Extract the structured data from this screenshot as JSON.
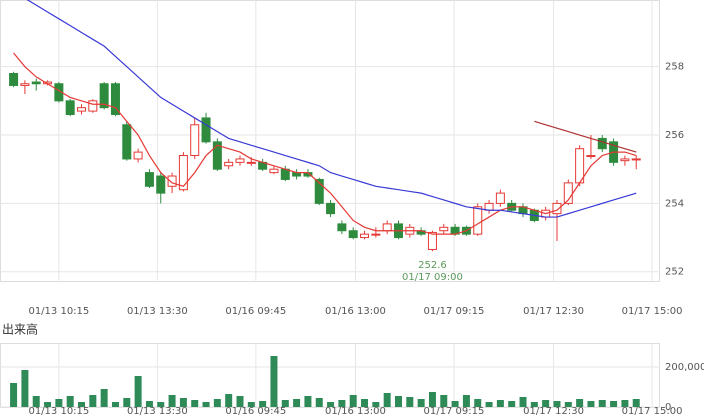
{
  "chart_data": {
    "type": "candlestick",
    "xlim": [
      -1.2,
      57.1
    ],
    "xticks": [
      {
        "value": 4,
        "label": "01/13 10:15"
      },
      {
        "value": 12.7,
        "label": "01/13 13:30"
      },
      {
        "value": 21.4,
        "label": "01/16 09:45"
      },
      {
        "value": 30.2,
        "label": "01/16 13:00"
      },
      {
        "value": 38.9,
        "label": "01/17 09:15"
      },
      {
        "value": 47.7,
        "label": "01/17 12:30"
      },
      {
        "value": 56.4,
        "label": "01/17 15:00"
      }
    ],
    "ylim": [
      251.7,
      259.95
    ],
    "yticks": [
      252,
      254,
      256,
      258
    ],
    "up_color": "#e53935",
    "down_color": "#2e8b3e",
    "open": [
      257.8,
      257.45,
      257.55,
      257.5,
      257.5,
      257.0,
      256.7,
      256.7,
      257.5,
      257.5,
      256.3,
      255.3,
      254.9,
      254.8,
      254.5,
      254.4,
      255.4,
      256.5,
      255.8,
      255.1,
      255.2,
      255.2,
      255.2,
      254.9,
      255.0,
      254.9,
      254.9,
      254.7,
      254.0,
      253.4,
      253.2,
      253.0,
      253.1,
      253.2,
      253.4,
      253.1,
      253.2,
      252.65,
      253.2,
      253.3,
      253.3,
      253.1,
      253.8,
      254.0,
      254.0,
      253.9,
      253.8,
      253.6,
      253.7,
      254.0,
      254.6,
      255.4,
      255.9,
      255.8,
      255.25,
      255.3
    ],
    "high": [
      257.85,
      257.6,
      257.65,
      257.6,
      257.55,
      257.05,
      256.9,
      257.05,
      257.55,
      257.55,
      256.4,
      255.6,
      255.0,
      254.9,
      254.9,
      255.5,
      256.5,
      256.65,
      255.9,
      255.3,
      255.4,
      255.35,
      255.3,
      255.1,
      255.1,
      255.0,
      255.0,
      254.75,
      254.1,
      253.5,
      253.3,
      253.2,
      253.3,
      253.5,
      253.5,
      253.4,
      253.3,
      253.2,
      253.4,
      253.4,
      253.35,
      254.0,
      254.1,
      254.4,
      254.1,
      254.0,
      253.85,
      253.9,
      254.1,
      254.7,
      255.7,
      256.0,
      256.0,
      255.9,
      255.4,
      255.4
    ],
    "low": [
      257.4,
      257.2,
      257.3,
      257.45,
      256.95,
      256.55,
      256.6,
      256.65,
      256.75,
      256.55,
      255.25,
      255.2,
      254.45,
      254.0,
      254.3,
      254.35,
      255.3,
      255.75,
      254.95,
      255.0,
      255.1,
      255.1,
      254.95,
      254.85,
      254.65,
      254.7,
      254.75,
      253.95,
      253.6,
      253.1,
      252.95,
      252.95,
      253.0,
      253.1,
      252.95,
      253.0,
      253.05,
      252.6,
      253.1,
      253.05,
      253.05,
      253.05,
      253.7,
      253.9,
      253.75,
      253.6,
      253.45,
      253.5,
      252.9,
      253.95,
      254.5,
      255.3,
      255.5,
      255.1,
      255.1,
      255.0
    ],
    "close": [
      257.45,
      257.5,
      257.5,
      257.55,
      257.0,
      256.6,
      256.8,
      257.0,
      256.8,
      256.6,
      255.3,
      255.5,
      254.5,
      254.3,
      254.8,
      255.4,
      256.3,
      255.8,
      255.0,
      255.2,
      255.3,
      255.2,
      255.0,
      255.0,
      254.7,
      254.8,
      254.8,
      254.0,
      253.7,
      253.2,
      253.0,
      253.1,
      253.1,
      253.4,
      253.0,
      253.3,
      253.1,
      253.15,
      253.3,
      253.1,
      253.1,
      253.9,
      254.0,
      254.3,
      253.8,
      253.7,
      253.5,
      253.8,
      254.0,
      254.6,
      255.6,
      255.4,
      255.6,
      255.2,
      255.3,
      255.3
    ],
    "lines": [
      {
        "color": "#e53935",
        "values": [
          258.4,
          258.0,
          257.7,
          257.5,
          257.3,
          257.1,
          257.0,
          256.9,
          256.9,
          256.8,
          256.4,
          256.0,
          255.4,
          254.9,
          254.6,
          254.5,
          254.9,
          255.4,
          255.7,
          255.6,
          255.5,
          255.3,
          255.2,
          255.1,
          255.0,
          254.9,
          254.9,
          254.6,
          254.3,
          253.9,
          253.5,
          253.3,
          253.2,
          253.2,
          253.2,
          253.2,
          253.2,
          253.1,
          253.1,
          253.1,
          253.2,
          253.4,
          253.6,
          253.8,
          253.9,
          253.9,
          253.8,
          253.7,
          253.8,
          254.1,
          254.6,
          255.1,
          255.4,
          255.5,
          255.5,
          255.4
        ]
      },
      {
        "color": "#3a3ad6",
        "values": [
          260.2,
          260.0,
          259.8,
          259.6,
          259.4,
          259.2,
          259.0,
          258.8,
          258.6,
          258.3,
          258.0,
          257.7,
          257.4,
          257.1,
          256.9,
          256.7,
          256.5,
          256.3,
          256.1,
          255.9,
          255.8,
          255.7,
          255.6,
          255.5,
          255.4,
          255.3,
          255.2,
          255.1,
          254.9,
          254.8,
          254.7,
          254.6,
          254.5,
          254.45,
          254.4,
          254.35,
          254.3,
          254.2,
          254.1,
          254.0,
          253.9,
          253.85,
          253.8,
          253.8,
          253.75,
          253.7,
          253.65,
          253.6,
          253.6,
          253.7,
          253.8,
          253.9,
          254.0,
          254.1,
          254.2,
          254.3
        ]
      },
      {
        "color": "#b03030",
        "values": [
          null,
          null,
          null,
          null,
          null,
          null,
          null,
          null,
          null,
          null,
          null,
          null,
          null,
          null,
          null,
          null,
          null,
          null,
          null,
          null,
          null,
          null,
          null,
          null,
          null,
          null,
          null,
          null,
          null,
          null,
          null,
          null,
          null,
          null,
          null,
          null,
          null,
          null,
          null,
          null,
          null,
          null,
          null,
          null,
          null,
          null,
          256.4,
          256.3,
          256.2,
          256.1,
          256.0,
          255.9,
          255.8,
          255.7,
          255.6,
          255.5
        ]
      }
    ],
    "annotation": {
      "value": 252.6,
      "label": "01/17 09:00"
    },
    "volume": {
      "title": "出来高",
      "color": "#2e8b57",
      "ylim": [
        0,
        320000
      ],
      "yticks": [
        0,
        {
          "value": 200000,
          "label": "200,000"
        }
      ],
      "values": [
        120000,
        185000,
        55000,
        25000,
        40000,
        55000,
        25000,
        60000,
        90000,
        25000,
        45000,
        155000,
        30000,
        25000,
        60000,
        45000,
        35000,
        25000,
        40000,
        65000,
        55000,
        25000,
        30000,
        255000,
        35000,
        40000,
        55000,
        45000,
        25000,
        35000,
        60000,
        40000,
        25000,
        70000,
        55000,
        50000,
        40000,
        75000,
        60000,
        30000,
        60000,
        40000,
        25000,
        35000,
        30000,
        50000,
        25000,
        35000,
        30000,
        25000,
        40000,
        30000,
        35000,
        30000,
        35000,
        40000
      ]
    }
  }
}
